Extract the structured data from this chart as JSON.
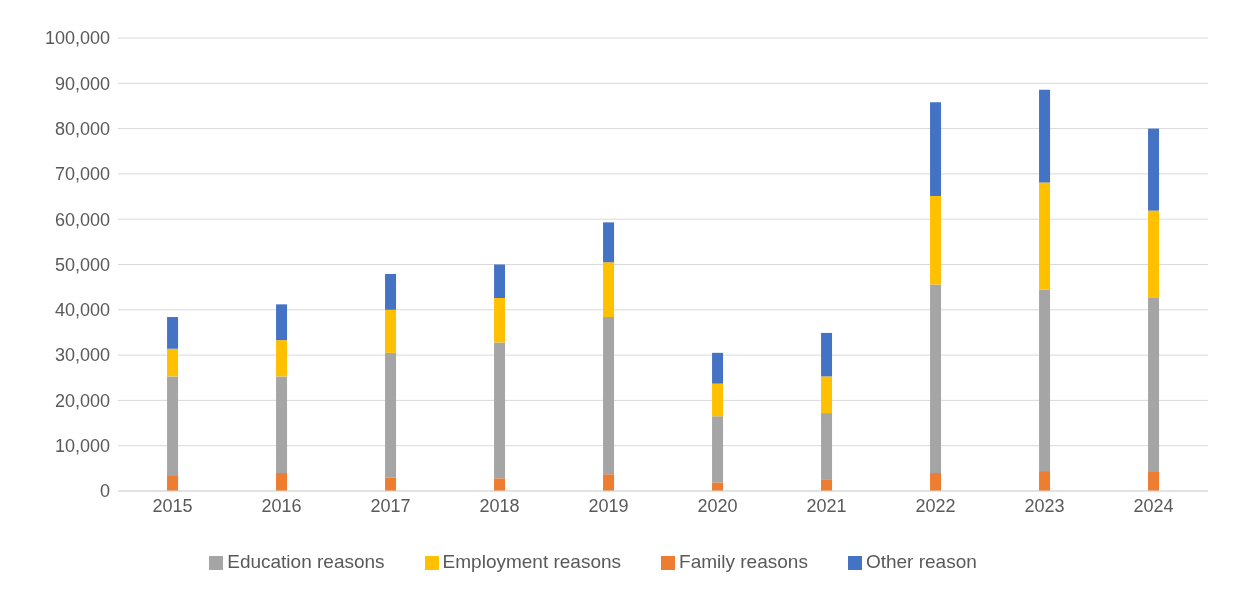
{
  "chart_data": {
    "type": "bar",
    "stacked": true,
    "categories": [
      "2015",
      "2016",
      "2017",
      "2018",
      "2019",
      "2020",
      "2021",
      "2022",
      "2023",
      "2024"
    ],
    "series": [
      {
        "name": "Family reasons",
        "color": "#ed7d31",
        "values": [
          3500,
          4000,
          3000,
          2800,
          3700,
          1900,
          2600,
          4000,
          4400,
          4200
        ]
      },
      {
        "name": "Education reasons",
        "color": "#a5a5a5",
        "values": [
          21800,
          21300,
          27500,
          30000,
          34700,
          14600,
          14600,
          41600,
          40000,
          38400
        ]
      },
      {
        "name": "Employment reasons",
        "color": "#ffc000",
        "values": [
          6100,
          8000,
          9500,
          9800,
          12100,
          7200,
          8100,
          19500,
          23700,
          19300
        ]
      },
      {
        "name": "Other reason",
        "color": "#4472c4",
        "values": [
          7000,
          7900,
          7900,
          7400,
          8800,
          6800,
          9600,
          20700,
          20500,
          18100
        ]
      }
    ],
    "ylim": [
      0,
      100000
    ],
    "yticks": [
      {
        "value": 0,
        "label": "0"
      },
      {
        "value": 10000,
        "label": "10,000"
      },
      {
        "value": 20000,
        "label": "20,000"
      },
      {
        "value": 30000,
        "label": "30,000"
      },
      {
        "value": 40000,
        "label": "40,000"
      },
      {
        "value": 50000,
        "label": "50,000"
      },
      {
        "value": 60000,
        "label": "60,000"
      },
      {
        "value": 70000,
        "label": "70,000"
      },
      {
        "value": 80000,
        "label": "80,000"
      },
      {
        "value": 90000,
        "label": "90,000"
      },
      {
        "value": 100000,
        "label": "100,000"
      }
    ],
    "grid": "y",
    "legend": "bottom"
  }
}
